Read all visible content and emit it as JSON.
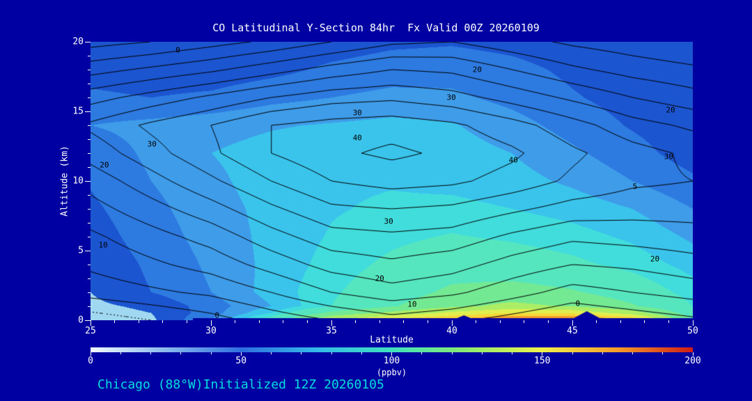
{
  "title": "CO Latitudinal Y-Section 84hr  Fx Valid 00Z 20260109",
  "footer": "Chicago (88°W)Initialized 12Z 20260105",
  "colors": {
    "background": "#0000a2",
    "text": "#ffffff",
    "footer_text": "#00dddd",
    "contour_line": "#000000",
    "tick": "#ffffff"
  },
  "axes": {
    "x_label": "Latitude",
    "y_label": "Altitude (km)",
    "x_ticks": [
      "25",
      "30",
      "35",
      "40",
      "45",
      "50"
    ],
    "y_ticks": [
      "0",
      "5",
      "10",
      "15",
      "20"
    ],
    "x_range": [
      25,
      50
    ],
    "y_range": [
      0,
      20
    ]
  },
  "colorbar": {
    "tick_labels": [
      "0",
      "50",
      "100",
      "150",
      "200"
    ],
    "units_label": "(ppbv)",
    "min": 0,
    "max": 200,
    "gradient_stops": [
      {
        "v": 0,
        "c": "#f0f8ff"
      },
      {
        "v": 25,
        "c": "#8ab9ee"
      },
      {
        "v": 50,
        "c": "#2e6ee0"
      },
      {
        "v": 75,
        "c": "#35b9ea"
      },
      {
        "v": 100,
        "c": "#3fe0be"
      },
      {
        "v": 125,
        "c": "#8cea70"
      },
      {
        "v": 150,
        "c": "#eff04b"
      },
      {
        "v": 175,
        "c": "#f49b2b"
      },
      {
        "v": 200,
        "c": "#cd1c16"
      }
    ]
  },
  "chart_data": {
    "type": "heatmap",
    "title": "CO Latitudinal Y-Section 84hr  Fx Valid 00Z 20260109",
    "xlabel": "Latitude",
    "ylabel": "Altitude (km)",
    "units": "ppbv",
    "x_range": [
      25,
      50
    ],
    "y_range": [
      0,
      20
    ],
    "value_range": [
      0,
      200
    ],
    "x_latitude": [
      25,
      27.5,
      30,
      32.5,
      35,
      37.5,
      40,
      42.5,
      45,
      47.5,
      50
    ],
    "y_altitude_km": [
      0,
      0.5,
      1,
      2,
      4,
      6,
      8,
      10,
      12,
      14,
      16,
      18,
      20
    ],
    "co_fill_values_ppbv": [
      [
        5,
        8,
        30,
        70,
        120,
        145,
        165,
        190,
        195,
        160,
        80
      ],
      [
        6,
        10,
        25,
        50,
        85,
        105,
        125,
        140,
        135,
        110,
        70
      ],
      [
        8,
        12,
        25,
        40,
        60,
        78,
        95,
        105,
        98,
        82,
        60
      ],
      [
        10,
        20,
        30,
        44,
        58,
        70,
        84,
        88,
        82,
        70,
        55
      ],
      [
        12,
        22,
        32,
        43,
        54,
        63,
        70,
        68,
        63,
        56,
        46
      ],
      [
        15,
        25,
        34,
        43,
        51,
        57,
        61,
        58,
        54,
        48,
        38
      ],
      [
        18,
        27,
        36,
        43,
        49,
        52,
        53,
        50,
        46,
        40,
        30
      ],
      [
        21,
        30,
        38,
        44,
        48,
        49,
        47,
        44,
        38,
        30,
        22
      ],
      [
        24,
        32,
        40,
        44,
        47,
        47,
        45,
        40,
        32,
        24,
        15
      ],
      [
        30,
        33,
        36,
        39,
        41,
        43,
        41,
        34,
        26,
        19,
        13
      ],
      [
        22,
        20,
        22,
        27,
        30,
        33,
        32,
        27,
        21,
        16,
        12
      ],
      [
        16,
        14,
        14,
        17,
        22,
        25,
        26,
        23,
        18,
        14,
        11
      ],
      [
        13,
        11,
        10,
        12,
        15,
        18,
        19,
        17,
        14,
        12,
        10
      ]
    ],
    "fill_bands": [
      {
        "min": 0,
        "color": "#9fd8f0"
      },
      {
        "min": 10,
        "color": "#1c55d0"
      },
      {
        "min": 20,
        "color": "#2d7ae0"
      },
      {
        "min": 30,
        "color": "#3f9ce9"
      },
      {
        "min": 40,
        "color": "#3ac4ec"
      },
      {
        "min": 50,
        "color": "#41dcdc"
      },
      {
        "min": 60,
        "color": "#55e6c0"
      },
      {
        "min": 80,
        "color": "#73e993"
      },
      {
        "min": 100,
        "color": "#abee66"
      },
      {
        "min": 120,
        "color": "#e0ef4f"
      },
      {
        "min": 140,
        "color": "#f7d838"
      },
      {
        "min": 160,
        "color": "#f59d2b"
      },
      {
        "min": 180,
        "color": "#e23222"
      }
    ],
    "overlay_contour_field": {
      "y_altitude_km": [
        0,
        2,
        4,
        6,
        8,
        10,
        12,
        14,
        16,
        18,
        20
      ],
      "values": [
        [
          -8,
          -5,
          -2,
          2,
          5,
          8,
          6,
          3,
          0,
          2,
          4
        ],
        [
          2,
          4,
          6,
          10,
          15,
          18,
          16,
          12,
          8,
          10,
          12
        ],
        [
          6,
          9,
          12,
          17,
          22,
          24,
          22,
          18,
          15,
          16,
          18
        ],
        [
          9,
          13,
          17,
          23,
          28,
          29,
          28,
          24,
          21,
          22,
          23
        ],
        [
          13,
          18,
          23,
          29,
          34,
          35,
          34,
          31,
          28,
          27,
          27
        ],
        [
          17,
          23,
          29,
          35,
          40,
          42,
          41,
          38,
          34,
          31,
          30
        ],
        [
          22,
          28,
          34,
          40,
          44,
          46,
          44,
          41,
          36,
          32,
          29
        ],
        [
          26,
          31,
          35,
          40,
          42,
          43,
          41,
          37,
          32,
          27,
          24
        ],
        [
          18,
          22,
          26,
          30,
          33,
          34,
          32,
          28,
          24,
          20,
          17
        ],
        [
          8,
          11,
          14,
          18,
          22,
          25,
          24,
          20,
          16,
          13,
          11
        ],
        [
          -2,
          0,
          3,
          6,
          10,
          14,
          15,
          12,
          9,
          7,
          5
        ]
      ],
      "levels": [
        -10,
        -5,
        0,
        5,
        10,
        15,
        20,
        25,
        30,
        35,
        40,
        45
      ],
      "negative_levels_dotted": true
    },
    "contour_labels": [
      {
        "text": "0",
        "fx": 0.145,
        "fy": 0.03
      },
      {
        "text": "20",
        "fx": 0.642,
        "fy": 0.1
      },
      {
        "text": "30",
        "fx": 0.599,
        "fy": 0.2
      },
      {
        "text": "30",
        "fx": 0.443,
        "fy": 0.255
      },
      {
        "text": "40",
        "fx": 0.443,
        "fy": 0.345
      },
      {
        "text": "40",
        "fx": 0.702,
        "fy": 0.425
      },
      {
        "text": "30",
        "fx": 0.102,
        "fy": 0.368
      },
      {
        "text": "20",
        "fx": 0.023,
        "fy": 0.443
      },
      {
        "text": "20",
        "fx": 0.963,
        "fy": 0.245
      },
      {
        "text": "30",
        "fx": 0.96,
        "fy": 0.413
      },
      {
        "text": "5",
        "fx": 0.904,
        "fy": 0.52
      },
      {
        "text": "30",
        "fx": 0.495,
        "fy": 0.645
      },
      {
        "text": "10",
        "fx": 0.021,
        "fy": 0.73
      },
      {
        "text": "20",
        "fx": 0.937,
        "fy": 0.78
      },
      {
        "text": "20",
        "fx": 0.48,
        "fy": 0.85
      },
      {
        "text": "10",
        "fx": 0.534,
        "fy": 0.943
      },
      {
        "text": "0",
        "fx": 0.809,
        "fy": 0.94
      },
      {
        "text": "0",
        "fx": 0.21,
        "fy": 0.982
      }
    ]
  }
}
